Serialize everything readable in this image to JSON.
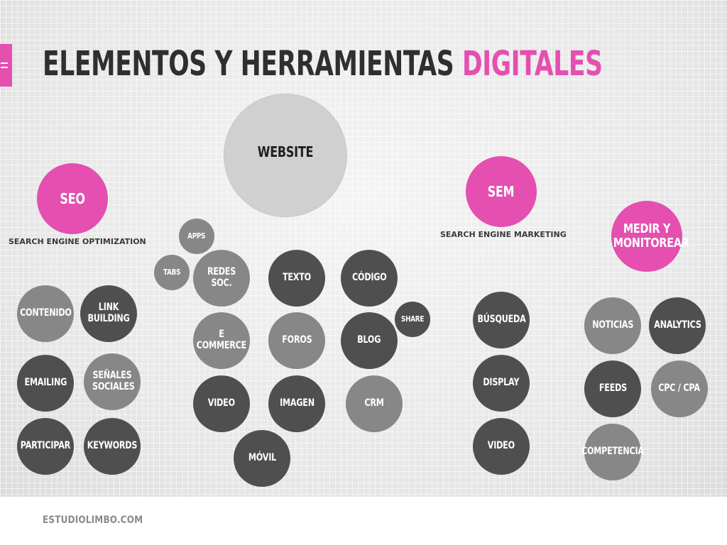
{
  "title": {
    "main": "ELEMENTOS Y HERRAMIENTAS",
    "accent": "DIGITALES"
  },
  "colors": {
    "accent": "#e44fb0",
    "dark_node": "#4f4f50",
    "mid_node": "#878787",
    "light_node": "#d0d0d0"
  },
  "nodes": {
    "website": "WEBSITE",
    "seo": "SEO",
    "sem": "SEM",
    "medir": "MEDIR Y MONITOREAR",
    "contenido": "CONTENIDO",
    "link_building": "LINK BUILDING",
    "emailing": "EMAILING",
    "senales_sociales": "SEÑALES SOCIALES",
    "participar": "PARTICIPAR",
    "keywords": "KEYWORDS",
    "apps": "APPS",
    "tabs": "TABS",
    "redes_soc": "REDES SOC.",
    "texto": "TEXTO",
    "codigo": "CÓDIGO",
    "share": "SHARE",
    "ecommerce": "E COMMERCE",
    "foros": "FOROS",
    "blog": "BLOG",
    "video_web": "VIDEO",
    "imagen": "IMAGEN",
    "crm": "CRM",
    "movil": "MÓVIL",
    "busqueda": "BÚSQUEDA",
    "display": "DISPLAY",
    "video_sem": "VIDEO",
    "noticias": "NOTICIAS",
    "analytics": "ANALYTICS",
    "feeds": "FEEDS",
    "cpc_cpa": "CPC / CPA",
    "competencia": "COMPETENCIA"
  },
  "captions": {
    "seo": "SEARCH ENGINE OPTIMIZATION",
    "sem": "SEARCH ENGINE MARKETING"
  },
  "footer": {
    "site": "ESTUDIOLIMBO.COM"
  }
}
